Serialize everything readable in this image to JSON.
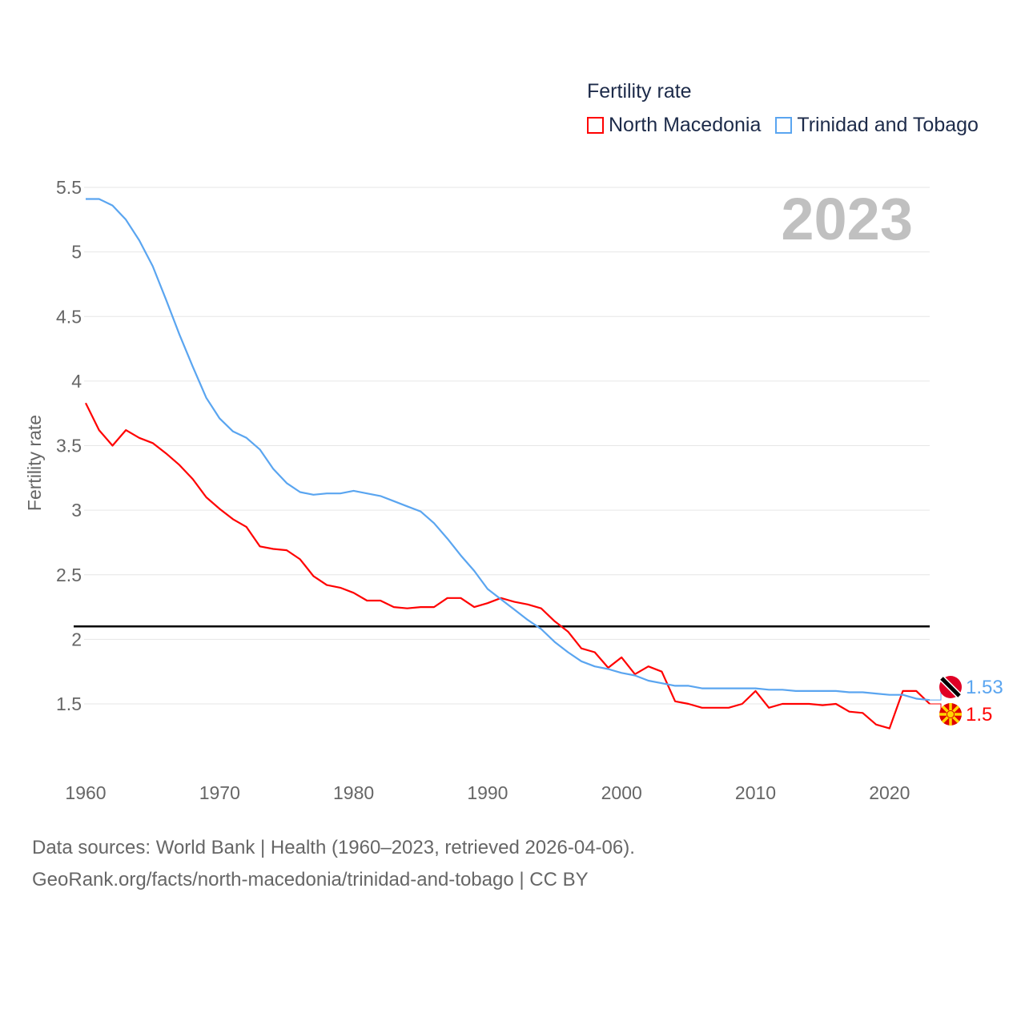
{
  "chart_data": {
    "type": "line",
    "title": "Fertility rate",
    "year_badge": "2023",
    "xlabel": "",
    "ylabel": "Fertility rate",
    "xlim": [
      1960,
      2023
    ],
    "ylim": [
      1.05,
      5.6
    ],
    "x_ticks": [
      "1960",
      "1970",
      "1980",
      "1990",
      "2000",
      "2010",
      "2020"
    ],
    "y_ticks": [
      "5.5",
      "5",
      "4.5",
      "4",
      "3.5",
      "3",
      "2.5",
      "2",
      "1.5"
    ],
    "reference_line": 2.1,
    "legend_placement": "top-right",
    "x": [
      1960,
      1961,
      1962,
      1963,
      1964,
      1965,
      1966,
      1967,
      1968,
      1969,
      1970,
      1971,
      1972,
      1973,
      1974,
      1975,
      1976,
      1977,
      1978,
      1979,
      1980,
      1981,
      1982,
      1983,
      1984,
      1985,
      1986,
      1987,
      1988,
      1989,
      1990,
      1991,
      1992,
      1993,
      1994,
      1995,
      1996,
      1997,
      1998,
      1999,
      2000,
      2001,
      2002,
      2003,
      2004,
      2005,
      2006,
      2007,
      2008,
      2009,
      2010,
      2011,
      2012,
      2013,
      2014,
      2015,
      2016,
      2017,
      2018,
      2019,
      2020,
      2021,
      2022,
      2023
    ],
    "series": [
      {
        "name": "North Macedonia",
        "color": "#ff0000",
        "end_label": "1.5",
        "values": [
          3.83,
          3.62,
          3.5,
          3.62,
          3.56,
          3.52,
          3.44,
          3.35,
          3.24,
          3.1,
          3.01,
          2.93,
          2.87,
          2.72,
          2.7,
          2.69,
          2.62,
          2.49,
          2.42,
          2.4,
          2.36,
          2.3,
          2.3,
          2.25,
          2.24,
          2.25,
          2.25,
          2.32,
          2.32,
          2.25,
          2.28,
          2.32,
          2.29,
          2.27,
          2.24,
          2.14,
          2.06,
          1.93,
          1.9,
          1.78,
          1.86,
          1.73,
          1.79,
          1.75,
          1.52,
          1.5,
          1.47,
          1.47,
          1.47,
          1.5,
          1.6,
          1.47,
          1.5,
          1.5,
          1.5,
          1.49,
          1.5,
          1.44,
          1.43,
          1.34,
          1.31,
          1.6,
          1.6,
          1.5
        ]
      },
      {
        "name": "Trinidad and Tobago",
        "color": "#5aa5f0",
        "end_label": "1.53",
        "values": [
          5.41,
          5.41,
          5.36,
          5.25,
          5.09,
          4.89,
          4.63,
          4.36,
          4.11,
          3.87,
          3.71,
          3.61,
          3.56,
          3.47,
          3.32,
          3.21,
          3.14,
          3.12,
          3.13,
          3.13,
          3.15,
          3.13,
          3.11,
          3.07,
          3.03,
          2.99,
          2.9,
          2.78,
          2.65,
          2.53,
          2.39,
          2.31,
          2.23,
          2.15,
          2.08,
          1.98,
          1.9,
          1.83,
          1.79,
          1.77,
          1.74,
          1.72,
          1.68,
          1.66,
          1.64,
          1.64,
          1.62,
          1.62,
          1.62,
          1.62,
          1.62,
          1.61,
          1.61,
          1.6,
          1.6,
          1.6,
          1.6,
          1.59,
          1.59,
          1.58,
          1.57,
          1.57,
          1.54,
          1.53
        ]
      }
    ]
  },
  "footer": {
    "line1": "Data sources: World Bank | Health (1960–2023, retrieved 2026-04-06).",
    "line2": "GeoRank.org/facts/north-macedonia/trinidad-and-tobago | CC BY"
  }
}
